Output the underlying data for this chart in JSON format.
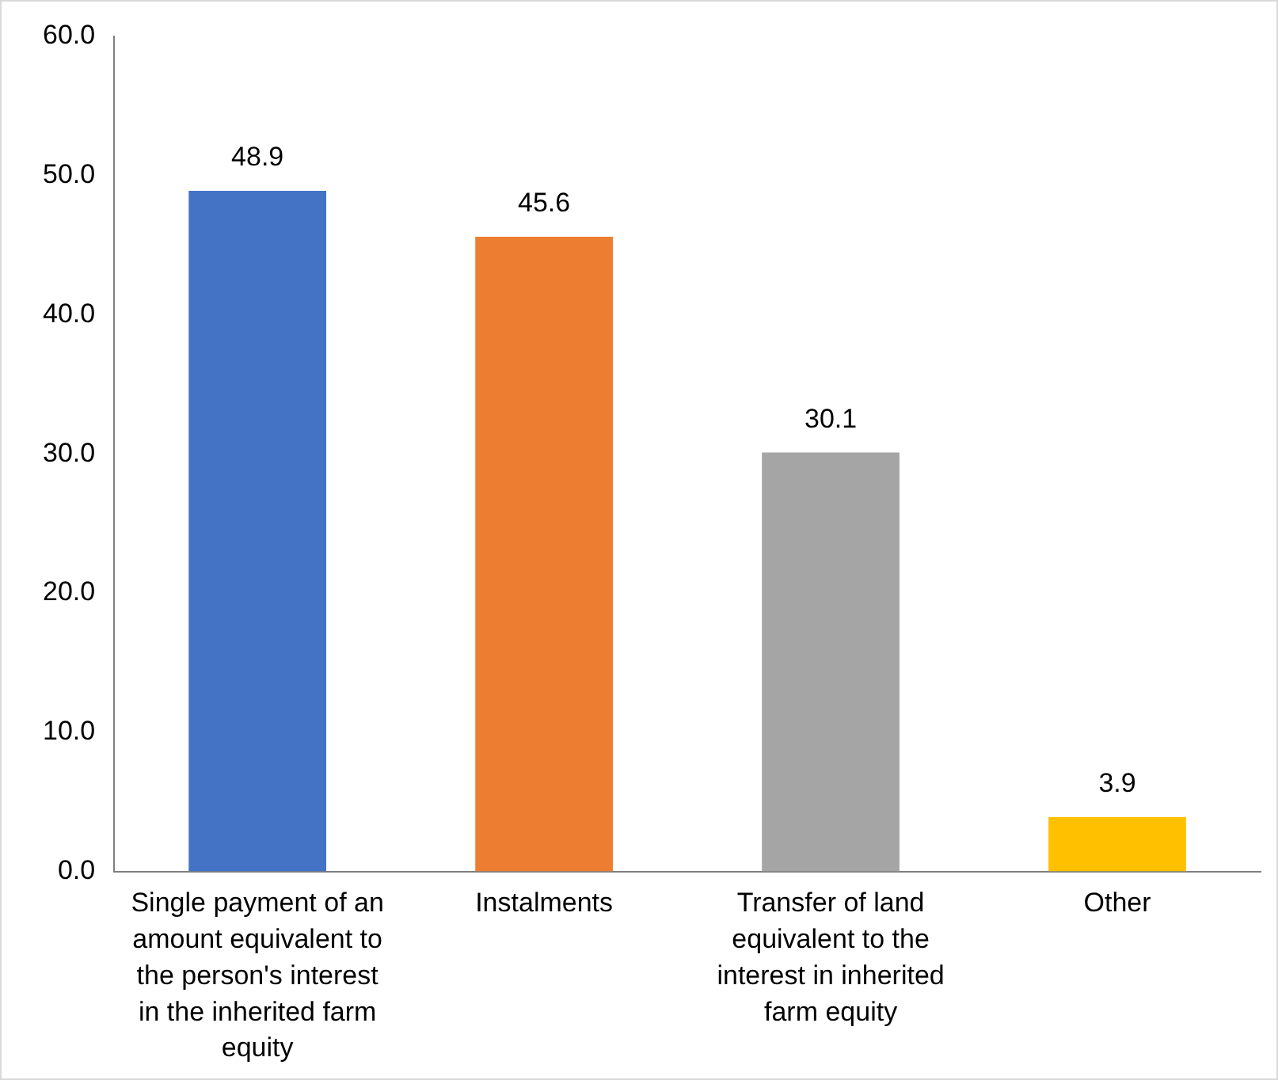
{
  "chart_data": {
    "type": "bar",
    "categories": [
      "Single payment of an amount equivalent to the person's interest in the inherited farm equity",
      "Instalments",
      "Transfer of land equivalent to the interest in inherited farm equity",
      "Other"
    ],
    "values": [
      48.9,
      45.6,
      30.1,
      3.9
    ],
    "colors": [
      "#4472c4",
      "#ed7d31",
      "#a5a5a5",
      "#ffc000"
    ],
    "ylim": [
      0,
      60
    ],
    "yticks": [
      {
        "value": 0,
        "label": "0.0"
      },
      {
        "value": 10,
        "label": "10.0"
      },
      {
        "value": 20,
        "label": "20.0"
      },
      {
        "value": 30,
        "label": "30.0"
      },
      {
        "value": 40,
        "label": "40.0"
      },
      {
        "value": 50,
        "label": "50.0"
      },
      {
        "value": 60,
        "label": "60.0"
      }
    ],
    "grid": false,
    "legend": false,
    "data_labels": true
  }
}
